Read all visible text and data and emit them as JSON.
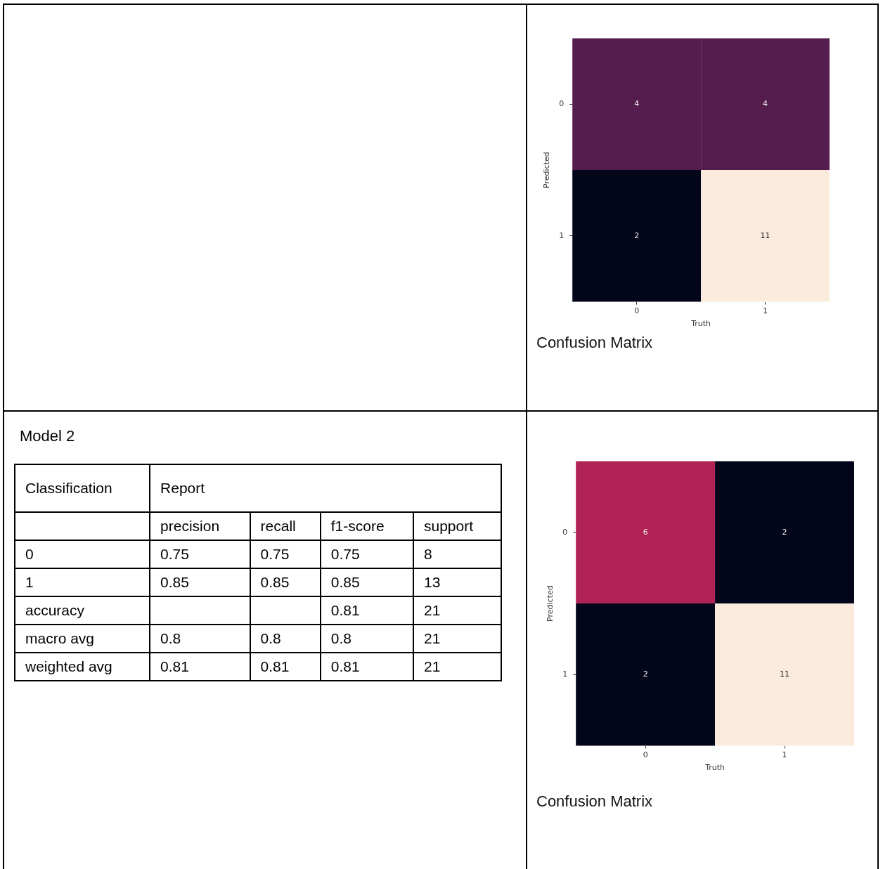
{
  "chart_data": [
    {
      "type": "heatmap",
      "xlabel": "Truth",
      "ylabel": "Predicted",
      "categories": [
        "0",
        "1"
      ],
      "y_categories": [
        "0",
        "1"
      ],
      "cells": [
        [
          4,
          4
        ],
        [
          2,
          11
        ]
      ],
      "data_labels": true,
      "grid": false,
      "annotations": [
        "Confusion Matrix"
      ]
    },
    {
      "type": "other",
      "title": "Model 2",
      "annotations": [
        "Classification",
        "Report"
      ],
      "categories": [
        "precision",
        "recall",
        "f1-score",
        "support"
      ],
      "y_categories": [
        "0",
        "1",
        "accuracy",
        "macro avg",
        "weighted avg"
      ],
      "cell_labels": [
        [
          "0.75",
          "0.75",
          "0.75",
          "8"
        ],
        [
          "0.85",
          "0.85",
          "0.85",
          "13"
        ],
        [
          null,
          null,
          "0.81",
          "21"
        ],
        [
          "0.8",
          "0.8",
          "0.8",
          "21"
        ],
        [
          "0.81",
          "0.81",
          "0.81",
          "21"
        ]
      ]
    },
    {
      "type": "heatmap",
      "xlabel": "Truth",
      "ylabel": "Predicted",
      "categories": [
        "0",
        "1"
      ],
      "y_categories": [
        "0",
        "1"
      ],
      "cells": [
        [
          6,
          2
        ],
        [
          2,
          11
        ]
      ],
      "data_labels": true,
      "grid": false,
      "annotations": [
        "Confusion Matrix"
      ]
    }
  ]
}
